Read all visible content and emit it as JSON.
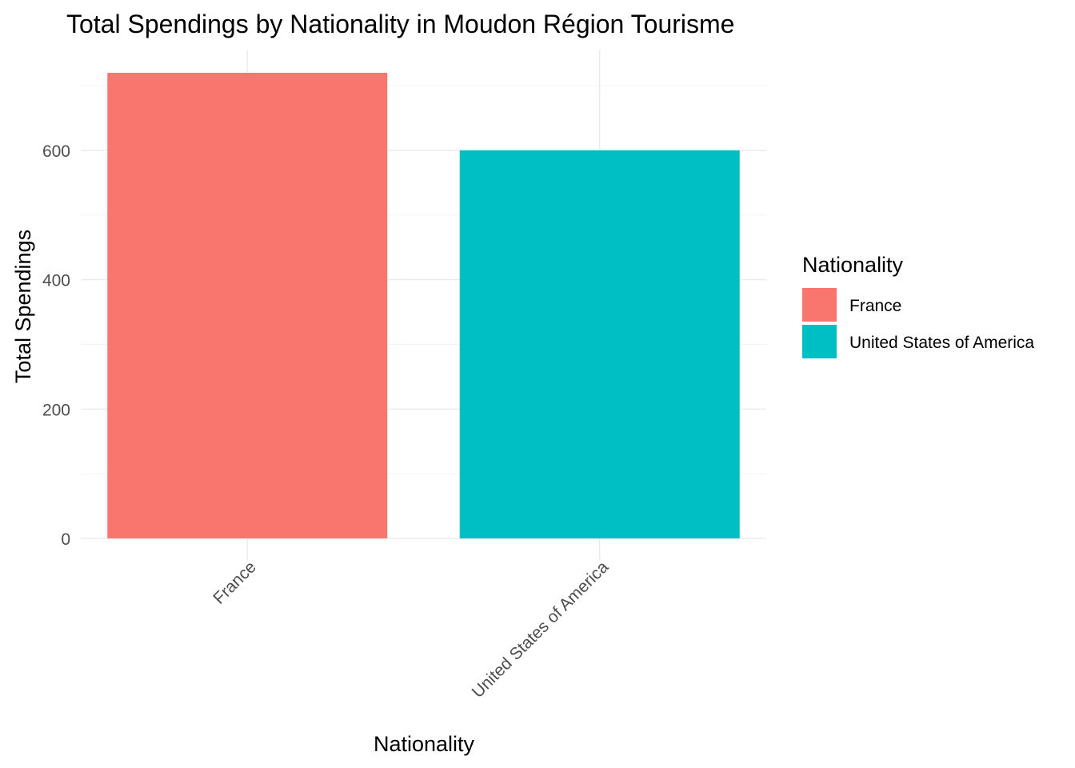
{
  "chart_data": {
    "type": "bar",
    "title": "Total Spendings by Nationality in Moudon Région Tourisme",
    "xlabel": "Nationality",
    "ylabel": "Total Spendings",
    "categories": [
      "France",
      "United States of America"
    ],
    "values": [
      720,
      600
    ],
    "colors": [
      "#F8766D",
      "#00BFC4"
    ],
    "ylim": [
      0,
      750
    ],
    "yticks": [
      0,
      200,
      400,
      600
    ],
    "grid": true,
    "legend": {
      "title": "Nationality",
      "position": "right",
      "entries": [
        "France",
        "United States of America"
      ]
    }
  }
}
